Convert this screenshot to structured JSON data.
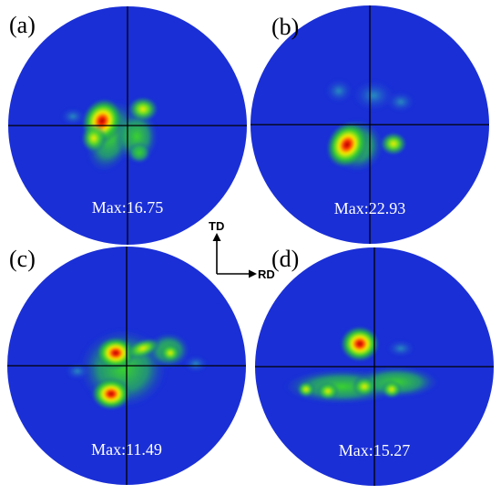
{
  "figure": {
    "panels": [
      {
        "label": "(a)",
        "max": "Max:16.75"
      },
      {
        "label": "(b)",
        "max": "Max:22.93"
      },
      {
        "label": "(c)",
        "max": "Max:11.49"
      },
      {
        "label": "(d)",
        "max": "Max:15.27"
      }
    ],
    "axes": {
      "vertical": "TD",
      "horizontal": "RD"
    },
    "colors": {
      "background_field": "#1a2fd6",
      "low": "#2fd12a",
      "mid": "#e8f000",
      "high": "#ff2a00",
      "peak": "#b00000",
      "crosshair": "#000000"
    }
  }
}
